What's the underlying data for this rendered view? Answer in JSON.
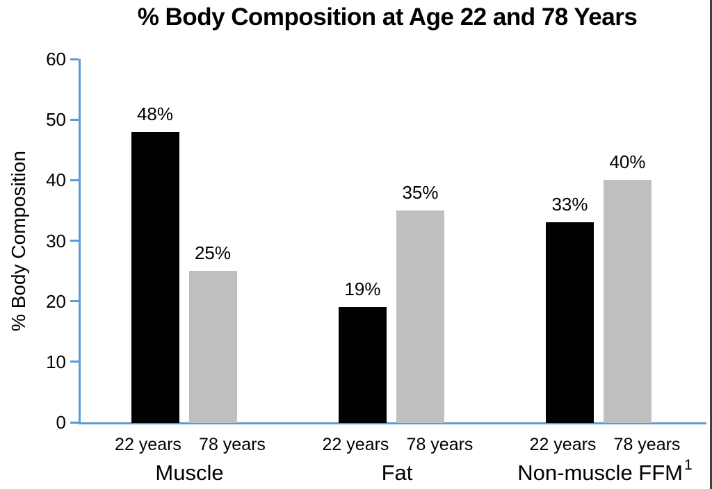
{
  "page": {
    "right_border_color": "#404040",
    "background_color": "#ffffff"
  },
  "chart_data": {
    "type": "bar",
    "title": "% Body Composition at Age 22 and 78 Years",
    "xlabel": "",
    "ylabel": "% Body Composition",
    "ylim": [
      0,
      60
    ],
    "yticks": [
      0,
      10,
      20,
      30,
      40,
      50,
      60
    ],
    "grid": false,
    "legend_position": "none",
    "axis_color": "#5B9BD5",
    "text_color": "#000000",
    "series": [
      {
        "name": "22 years",
        "color": "#000000",
        "values": [
          48,
          19,
          33
        ]
      },
      {
        "name": "78 years",
        "color": "#BFBFBF",
        "values": [
          25,
          35,
          40
        ]
      }
    ],
    "categories": [
      "Muscle",
      "Fat",
      "Non-muscle FFM"
    ],
    "category_footnotes": [
      "",
      "",
      "1"
    ],
    "groups": [
      {
        "label": "Muscle",
        "footnote": "",
        "bars": [
          {
            "series": "22 years",
            "value": 48,
            "value_label": "48%"
          },
          {
            "series": "78 years",
            "value": 25,
            "value_label": "25%"
          }
        ]
      },
      {
        "label": "Fat",
        "footnote": "",
        "bars": [
          {
            "series": "22 years",
            "value": 19,
            "value_label": "19%"
          },
          {
            "series": "78 years",
            "value": 35,
            "value_label": "35%"
          }
        ]
      },
      {
        "label": "Non-muscle FFM",
        "footnote": "1",
        "bars": [
          {
            "series": "22 years",
            "value": 33,
            "value_label": "33%"
          },
          {
            "series": "78 years",
            "value": 40,
            "value_label": "40%"
          }
        ]
      }
    ]
  }
}
